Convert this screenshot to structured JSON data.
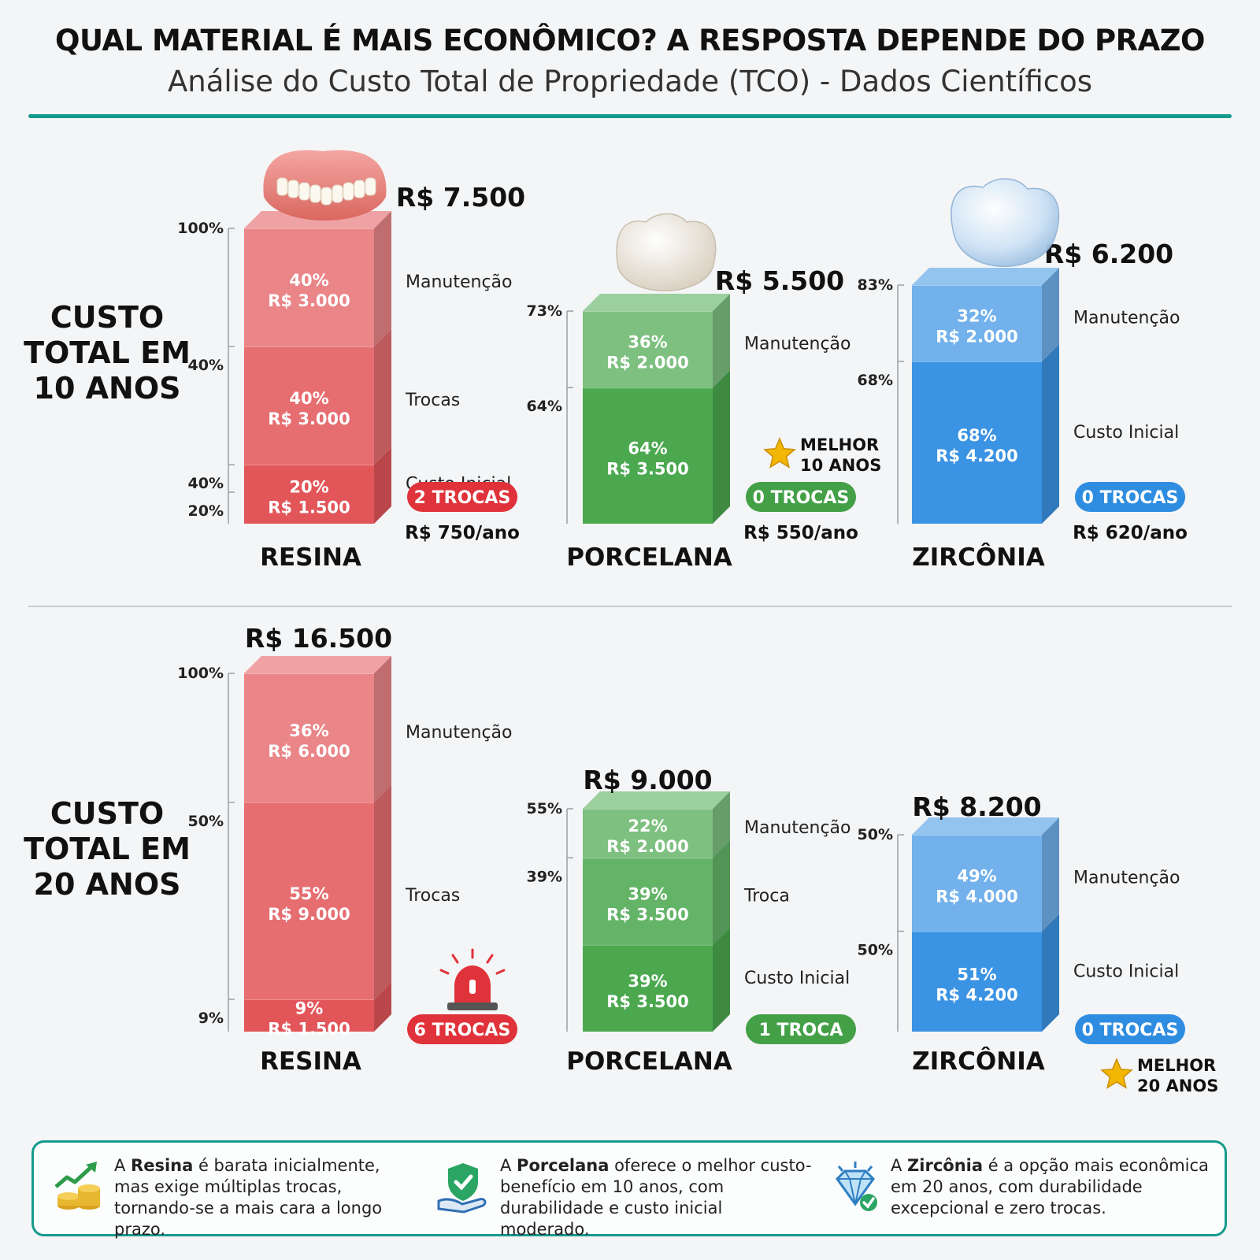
{
  "header": {
    "title": "QUAL MATERIAL É MAIS ECONÔMICO? A RESPOSTA DEPENDE DO PRAZO",
    "subtitle": "Análise do Custo Total de Propriedade (TCO) - Dados Científicos"
  },
  "colors": {
    "accent": "#159a8c",
    "resina": "#e2565a",
    "porcelana": "#4ba84f",
    "zirconia": "#3b93e3",
    "badge_red": "#e0323a",
    "badge_green": "#43a047",
    "badge_blue": "#2e8de0",
    "star": "#f2b705"
  },
  "chart_data": [
    {
      "type": "bar",
      "stacked": true,
      "title": "CUSTO TOTAL EM 10 ANOS",
      "categories": [
        "RESINA",
        "PORCELANA",
        "ZIRCÔNIA"
      ],
      "bars": [
        {
          "category": "RESINA",
          "total": 7500,
          "total_label": "R$ 7.500",
          "axis_ticks": [
            "100%",
            "40%",
            "40%",
            "20%"
          ],
          "segments": [
            {
              "name": "Custo Inicial",
              "percent": 20,
              "value": 1500,
              "pct_label": "20%",
              "value_label": "R$ 1.500"
            },
            {
              "name": "Trocas",
              "percent": 40,
              "value": 3000,
              "pct_label": "40%",
              "value_label": "R$ 3.000"
            },
            {
              "name": "Manutenção",
              "percent": 40,
              "value": 3000,
              "pct_label": "40%",
              "value_label": "R$ 3.000"
            }
          ],
          "badge": "2 TROCAS",
          "per_year": "R$ 750/ano",
          "icon": "denture-icon"
        },
        {
          "category": "PORCELANA",
          "total": 5500,
          "total_label": "R$ 5.500",
          "axis_ticks": [
            "73%",
            "64%"
          ],
          "segments": [
            {
              "name": "",
              "percent": 64,
              "value": 3500,
              "pct_label": "64%",
              "value_label": "R$ 3.500"
            },
            {
              "name": "Manutenção",
              "percent": 36,
              "value": 2000,
              "pct_label": "36%",
              "value_label": "R$ 2.000"
            }
          ],
          "badge": "0 TROCAS",
          "per_year": "R$ 550/ano",
          "best": [
            "MELHOR",
            "10 ANOS"
          ],
          "icon": "porcelain-crown-icon"
        },
        {
          "category": "ZIRCÔNIA",
          "total": 6200,
          "total_label": "R$ 6.200",
          "axis_ticks": [
            "83%",
            "68%"
          ],
          "segments": [
            {
              "name": "Custo Inicial",
              "percent": 68,
              "value": 4200,
              "pct_label": "68%",
              "value_label": "R$ 4.200"
            },
            {
              "name": "Manutenção",
              "percent": 32,
              "value": 2000,
              "pct_label": "32%",
              "value_label": "R$ 2.000"
            }
          ],
          "badge": "0 TROCAS",
          "per_year": "R$ 620/ano",
          "icon": "zirconia-crown-icon"
        }
      ]
    },
    {
      "type": "bar",
      "stacked": true,
      "title": "CUSTO TOTAL EM 20 ANOS",
      "categories": [
        "RESINA",
        "PORCELANA",
        "ZIRCÔNIA"
      ],
      "bars": [
        {
          "category": "RESINA",
          "total": 16500,
          "total_label": "R$ 16.500",
          "axis_ticks": [
            "100%",
            "50%",
            "9%"
          ],
          "segments": [
            {
              "name": "",
              "percent": 9,
              "value": 1500,
              "pct_label": "9%",
              "value_label": "R$ 1.500"
            },
            {
              "name": "Trocas",
              "percent": 55,
              "value": 9000,
              "pct_label": "55%",
              "value_label": "R$ 9.000"
            },
            {
              "name": "Manutenção",
              "percent": 36,
              "value": 6000,
              "pct_label": "36%",
              "value_label": "R$ 6.000"
            }
          ],
          "badge": "6 TROCAS",
          "icon": "alarm-siren-icon"
        },
        {
          "category": "PORCELANA",
          "total": 9000,
          "total_label": "R$ 9.000",
          "axis_ticks": [
            "55%",
            "39%"
          ],
          "segments": [
            {
              "name": "Custo Inicial",
              "percent": 39,
              "value": 3500,
              "pct_label": "39%",
              "value_label": "R$ 3.500"
            },
            {
              "name": "Troca",
              "percent": 39,
              "value": 3500,
              "pct_label": "39%",
              "value_label": "R$ 3.500"
            },
            {
              "name": "Manutenção",
              "percent": 22,
              "value": 2000,
              "pct_label": "22%",
              "value_label": "R$ 2.000"
            }
          ],
          "badge": "1 TROCA"
        },
        {
          "category": "ZIRCÔNIA",
          "total": 8200,
          "total_label": "R$ 8.200",
          "axis_ticks": [
            "50%",
            "50%"
          ],
          "segments": [
            {
              "name": "Custo Inicial",
              "percent": 51,
              "value": 4200,
              "pct_label": "51%",
              "value_label": "R$ 4.200"
            },
            {
              "name": "Manutenção",
              "percent": 49,
              "value": 4000,
              "pct_label": "49%",
              "value_label": "R$ 4.000"
            }
          ],
          "badge": "0 TROCAS",
          "best": [
            "MELHOR",
            "20 ANOS"
          ]
        }
      ]
    }
  ],
  "footer": {
    "notes": [
      {
        "icon": "growth-coins-icon",
        "pre": "A ",
        "bold": "Resina",
        "rest": " é barata inicialmente, mas exige múltiplas trocas, tornando-se a mais cara a longo prazo."
      },
      {
        "icon": "shield-hand-icon",
        "pre": "A ",
        "bold": "Porcelana",
        "rest": " oferece o melhor custo-benefício em 10 anos, com durabilidade e custo inicial moderado."
      },
      {
        "icon": "diamond-check-icon",
        "pre": "A ",
        "bold": "Zircônia",
        "rest": " é a opção mais econômica em 20 anos, com durabilidade excepcional e zero trocas."
      }
    ]
  }
}
